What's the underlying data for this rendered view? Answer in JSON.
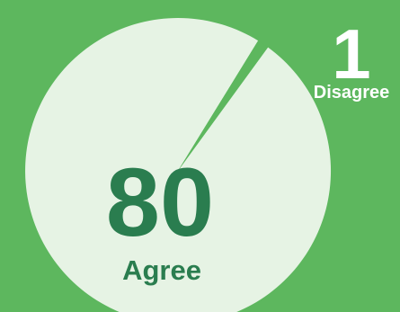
{
  "colors": {
    "background": "#5db75e",
    "agree_slice": "#e6f3e4",
    "text_dark": "#2a7d4f",
    "text_white": "#ffffff"
  },
  "chart_data": {
    "type": "pie",
    "categories": [
      "Agree",
      "Disagree"
    ],
    "values": [
      80,
      1
    ],
    "data_labels": [
      "80",
      "1"
    ],
    "legend": "none",
    "title": ""
  }
}
